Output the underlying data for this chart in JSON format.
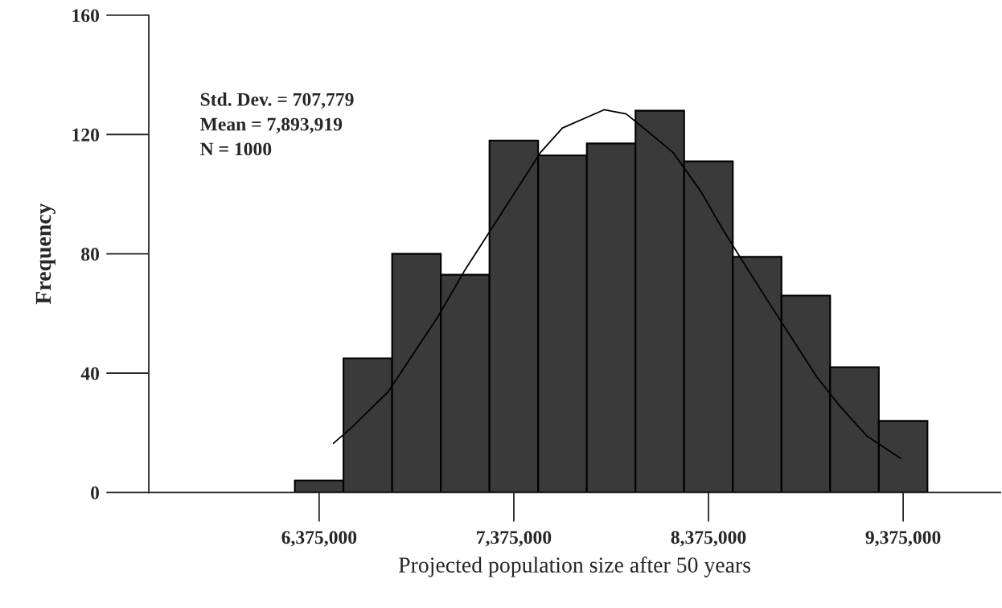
{
  "chart_data": {
    "type": "histogram",
    "xlabel": "Projected population size after 50 years",
    "ylabel": "Frequency",
    "bins": [
      6250000,
      6500000,
      6750000,
      7000000,
      7250000,
      7500000,
      7750000,
      8000000,
      8250000,
      8500000,
      8750000,
      9000000,
      9250000,
      9500000
    ],
    "values": [
      4,
      45,
      80,
      73,
      118,
      113,
      117,
      128,
      111,
      79,
      66,
      42,
      24
    ],
    "color": "#3a3a3a",
    "series": [
      {
        "type": "line",
        "color": "#000000",
        "x": [
          6449000,
          6544000,
          6730000,
          6986000,
          7126000,
          7227000,
          7355000,
          7511000,
          7625000,
          7839000,
          7952000,
          8066000,
          8194000,
          8336000,
          8443000,
          8536000,
          8677000,
          8805000,
          8933000,
          9048000,
          9188000,
          9361000
        ],
        "values": [
          16.5,
          21.9,
          33.8,
          59,
          74.8,
          85,
          98,
          113.9,
          122.2,
          128.3,
          126.9,
          120.9,
          113.9,
          100.9,
          88.8,
          79,
          64.5,
          51.5,
          38.6,
          29.1,
          19,
          11.5
        ]
      }
    ],
    "annotations": [
      "Std. Dev. = 707,779",
      "Mean = 7,893,919",
      "N = 1000"
    ],
    "xlim": [
      5500000,
      9875000
    ],
    "xticks": [
      {
        "value": 6375000,
        "label": "6,375,000"
      },
      {
        "value": 7375000,
        "label": "7,375,000"
      },
      {
        "value": 8375000,
        "label": "8,375,000"
      },
      {
        "value": 9375000,
        "label": "9,375,000"
      }
    ],
    "ylim": [
      0,
      160
    ],
    "yticks": [
      0,
      40,
      80,
      120,
      160
    ],
    "grid": false,
    "legend": false
  }
}
